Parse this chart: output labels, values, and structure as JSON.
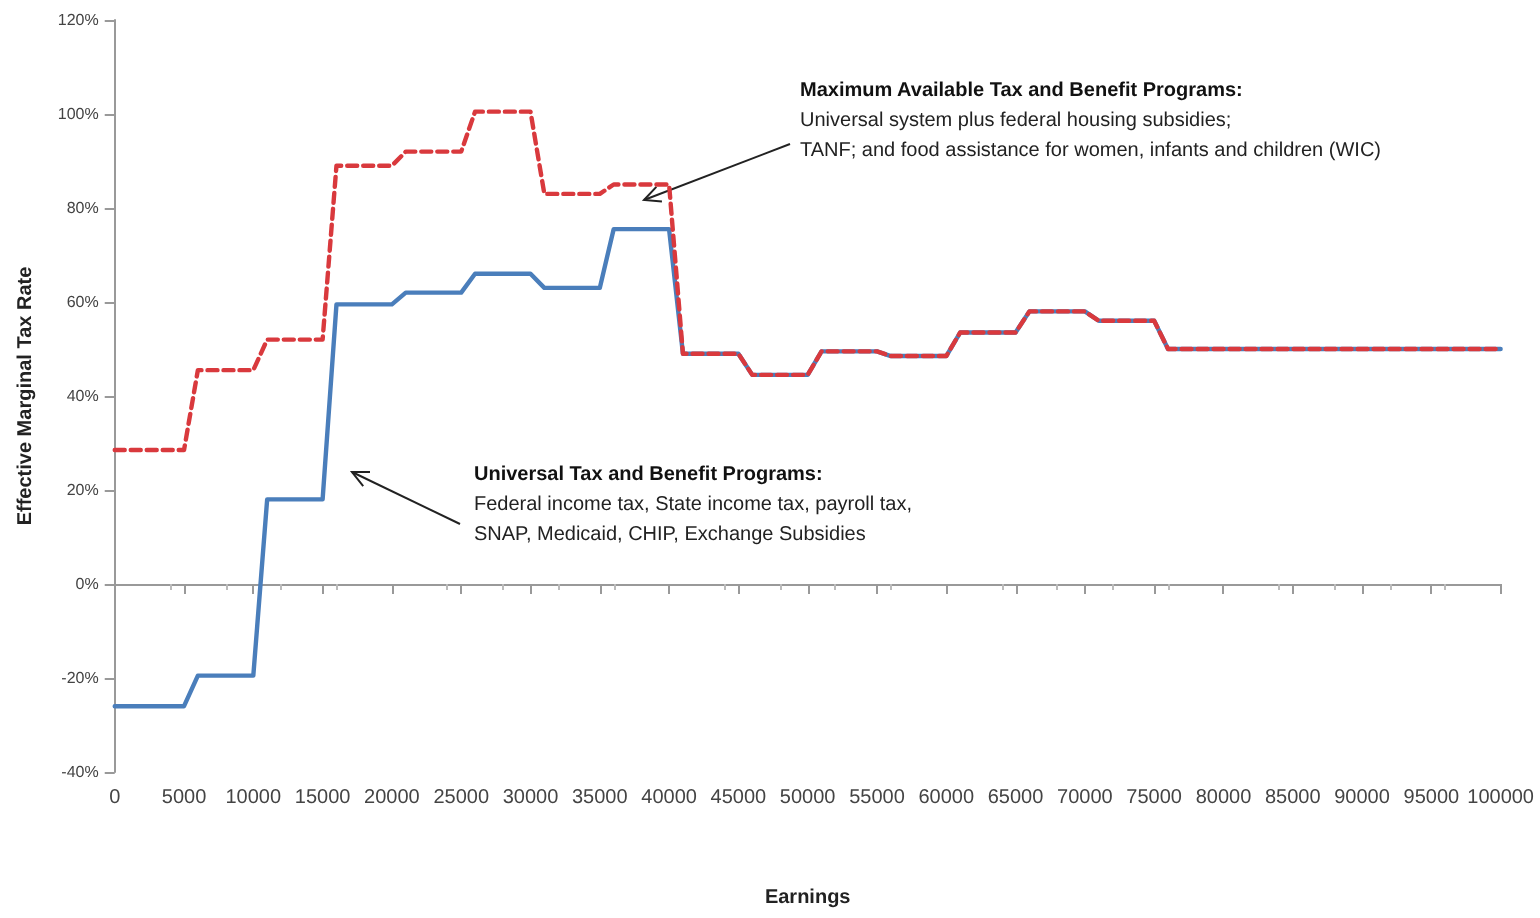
{
  "chart_data": {
    "type": "line",
    "xlabel": "Earnings",
    "ylabel": "Effective Marginal Tax Rate",
    "xlim": [
      0,
      100000
    ],
    "xticks": [
      0,
      5000,
      10000,
      15000,
      20000,
      25000,
      30000,
      35000,
      40000,
      45000,
      50000,
      55000,
      60000,
      65000,
      70000,
      75000,
      80000,
      85000,
      90000,
      95000,
      100000
    ],
    "ylim": [
      -40,
      120
    ],
    "yticks": [
      {
        "value": -40,
        "label": "-40%"
      },
      {
        "value": -20,
        "label": "-20%"
      },
      {
        "value": 0,
        "label": "0%"
      },
      {
        "value": 20,
        "label": "20%"
      },
      {
        "value": 40,
        "label": "40%"
      },
      {
        "value": 60,
        "label": "60%"
      },
      {
        "value": 80,
        "label": "80%"
      },
      {
        "value": 100,
        "label": "100%"
      },
      {
        "value": 120,
        "label": "120%"
      }
    ],
    "marker": "none",
    "series": [
      {
        "color": "#4a7ebb",
        "line_style": "solid",
        "x": [
          0,
          5000,
          6000,
          10000,
          11000,
          15000,
          16000,
          20000,
          21000,
          25000,
          26000,
          30000,
          31000,
          35000,
          36000,
          40000,
          41000,
          45000,
          46000,
          50000,
          51000,
          55000,
          56000,
          60000,
          61000,
          65000,
          66000,
          70000,
          71000,
          75000,
          76000,
          100000
        ],
        "values": [
          -26,
          -26,
          -19.5,
          -19.5,
          18,
          18,
          59.5,
          59.5,
          62,
          62,
          66,
          66,
          63,
          63,
          75.5,
          75.5,
          49,
          49,
          44.5,
          44.5,
          49.5,
          49.5,
          48.5,
          48.5,
          53.5,
          53.5,
          58,
          58,
          56,
          56,
          50,
          50
        ]
      },
      {
        "color": "#d9393d",
        "line_style": "dashed",
        "x": [
          0,
          5000,
          6000,
          10000,
          11000,
          15000,
          16000,
          20000,
          21000,
          25000,
          26000,
          30000,
          31000,
          35000,
          36000,
          40000,
          41000,
          45000,
          46000,
          50000,
          51000,
          55000,
          56000,
          60000,
          61000,
          65000,
          66000,
          70000,
          71000,
          75000,
          76000,
          100000
        ],
        "values": [
          28.5,
          28.5,
          45.5,
          45.5,
          52,
          52,
          89,
          89,
          92,
          92,
          100.5,
          100.5,
          83,
          83,
          85,
          85,
          49,
          49,
          44.5,
          44.5,
          49.5,
          49.5,
          48.5,
          48.5,
          53.5,
          53.5,
          58,
          58,
          56,
          56,
          50,
          50
        ]
      }
    ],
    "annotations": [
      "Maximum Available Tax and Benefit Programs:\nUniversal system plus federal housing subsidies;\nTANF; and food assistance for women, infants and children (WIC)",
      "Universal Tax and Benefit Programs:\nFederal income tax, State income tax, payroll tax,\nSNAP, Medicaid, CHIP, Exchange Subsidies"
    ]
  }
}
